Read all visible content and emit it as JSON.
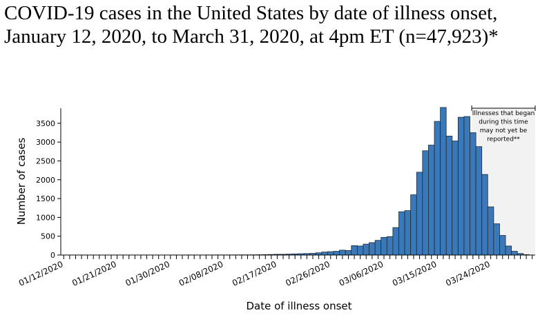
{
  "chart_data": {
    "type": "bar",
    "title": "COVID-19 cases in the United States by date of illness onset, January 12, 2020, to March 31, 2020, at 4pm ET (n=47,923)*",
    "x_label": "Date of illness onset",
    "y_label": "Number of cases",
    "annotation": [
      "Illnesses that began",
      "during this time",
      "may not yet be",
      "reported**"
    ],
    "color": "#3b78b7",
    "categories": [
      "01/12/2020",
      null,
      null,
      null,
      null,
      null,
      null,
      null,
      null,
      "01/21/2020",
      null,
      null,
      null,
      null,
      null,
      null,
      null,
      null,
      "01/30/2020",
      null,
      null,
      null,
      null,
      null,
      null,
      null,
      null,
      "02/08/2020",
      null,
      null,
      null,
      null,
      null,
      null,
      null,
      null,
      "02/17/2020",
      null,
      null,
      null,
      null,
      null,
      null,
      null,
      null,
      "02/26/2020",
      null,
      null,
      null,
      null,
      null,
      null,
      null,
      null,
      "03/06/2020",
      null,
      null,
      null,
      null,
      null,
      null,
      null,
      null,
      "03/15/2020",
      null,
      null,
      null,
      null,
      null,
      null,
      null,
      null,
      "03/24/2020",
      null,
      null,
      null,
      null,
      null,
      null,
      null
    ],
    "values": [
      1,
      0,
      0,
      1,
      0,
      1,
      1,
      0,
      1,
      1,
      2,
      1,
      2,
      1,
      2,
      2,
      1,
      2,
      2,
      3,
      2,
      3,
      3,
      2,
      3,
      3,
      4,
      3,
      4,
      4,
      5,
      5,
      6,
      8,
      10,
      15,
      20,
      20,
      25,
      30,
      35,
      40,
      45,
      60,
      80,
      90,
      100,
      130,
      120,
      250,
      240,
      290,
      330,
      390,
      470,
      490,
      730,
      1150,
      1180,
      1600,
      2200,
      2770,
      2920,
      3550,
      3920,
      3160,
      3030,
      3660,
      3680,
      3250,
      2880,
      2140,
      1280,
      830,
      520,
      240,
      100,
      40,
      10,
      0
    ],
    "ylim": [
      0,
      3900
    ],
    "yticks": [
      0,
      500,
      1000,
      1500,
      2000,
      2500,
      3000,
      3500
    ]
  }
}
